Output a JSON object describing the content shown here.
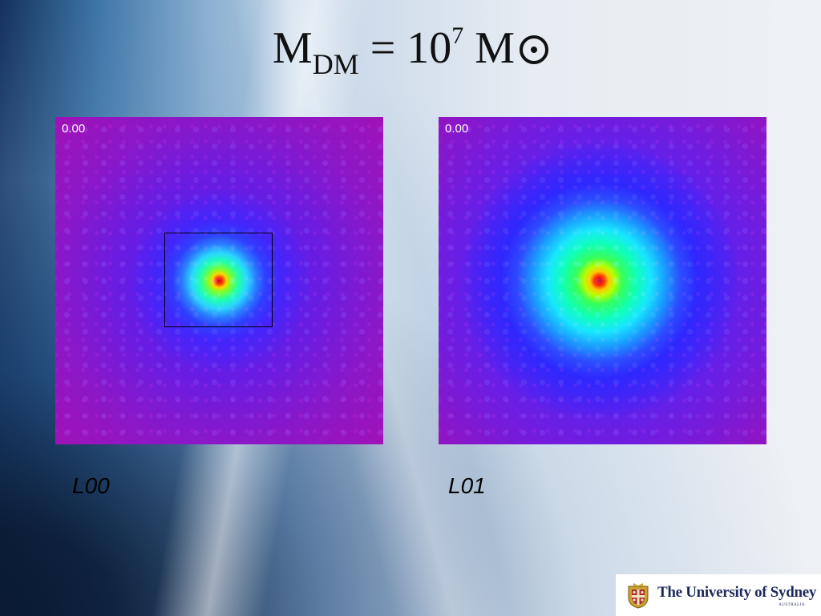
{
  "slide": {
    "title": {
      "main": "M",
      "subscript": "DM",
      "equals": " = 10",
      "superscript": "7",
      "unit": " M",
      "unit_symbol": "sun-symbol-icon"
    },
    "panels": [
      {
        "timestamp": "0.00",
        "label": "L00"
      },
      {
        "timestamp": "0.00",
        "label": "L01"
      }
    ],
    "logo": {
      "text": "The University of Sydney",
      "sub": "AUSTRALIA"
    }
  },
  "colors": {
    "title": "#111111",
    "logo_text": "#1f2a5c",
    "heatmap_core": "#c40010",
    "heatmap_background": "#8a18c8"
  }
}
